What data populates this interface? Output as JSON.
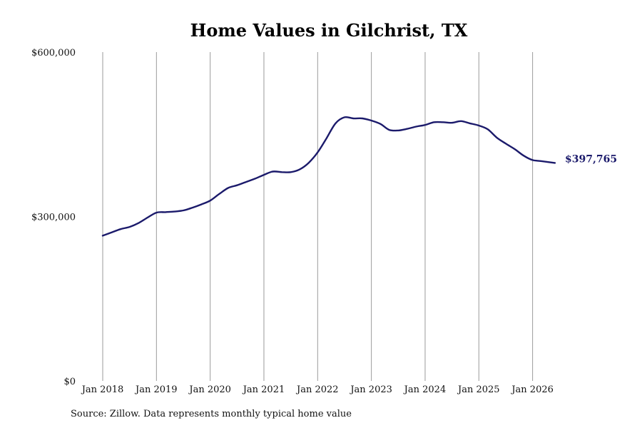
{
  "chart_data": {
    "type": "line",
    "title": "Home Values in Gilchrist, TX",
    "xlabel": "",
    "ylabel": "",
    "ylim": [
      0,
      600000
    ],
    "yticks": [
      {
        "value": 0,
        "label": "$0"
      },
      {
        "value": 300000,
        "label": "$300,000"
      },
      {
        "value": 600000,
        "label": "$600,000"
      }
    ],
    "xticks": [
      {
        "value": "2018-01",
        "label": "Jan 2018"
      },
      {
        "value": "2019-01",
        "label": "Jan 2019"
      },
      {
        "value": "2020-01",
        "label": "Jan 2020"
      },
      {
        "value": "2021-01",
        "label": "Jan 2021"
      },
      {
        "value": "2022-01",
        "label": "Jan 2022"
      },
      {
        "value": "2023-01",
        "label": "Jan 2023"
      },
      {
        "value": "2024-01",
        "label": "Jan 2024"
      },
      {
        "value": "2025-01",
        "label": "Jan 2025"
      },
      {
        "value": "2026-01",
        "label": "Jan 2026"
      }
    ],
    "xlim": [
      "2018-01",
      "2026-06"
    ],
    "grid": {
      "vertical": true,
      "horizontal": false
    },
    "line_color": "#1b1a6b",
    "grid_color": "#9a9a9a",
    "series": [
      {
        "x": [
          "2018-01",
          "2018-03",
          "2018-05",
          "2018-07",
          "2018-09",
          "2018-11",
          "2019-01",
          "2019-03",
          "2019-05",
          "2019-07",
          "2019-09",
          "2019-11",
          "2020-01",
          "2020-03",
          "2020-05",
          "2020-07",
          "2020-09",
          "2020-11",
          "2021-01",
          "2021-03",
          "2021-05",
          "2021-07",
          "2021-09",
          "2021-11",
          "2022-01",
          "2022-03",
          "2022-05",
          "2022-07",
          "2022-09",
          "2022-11",
          "2023-01",
          "2023-03",
          "2023-05",
          "2023-07",
          "2023-09",
          "2023-11",
          "2024-01",
          "2024-03",
          "2024-05",
          "2024-07",
          "2024-09",
          "2024-11",
          "2025-01",
          "2025-03",
          "2025-05",
          "2025-07",
          "2025-09",
          "2025-11",
          "2026-01",
          "2026-03",
          "2026-06"
        ],
        "values": [
          265000,
          271000,
          277000,
          281000,
          288000,
          298000,
          307000,
          308000,
          309000,
          311000,
          316000,
          322000,
          329000,
          341000,
          352000,
          357000,
          363000,
          369000,
          376000,
          382000,
          381000,
          381000,
          386000,
          398000,
          417000,
          443000,
          470000,
          481000,
          479000,
          479000,
          475000,
          469000,
          458000,
          457000,
          460000,
          464000,
          467000,
          472000,
          472000,
          471000,
          474000,
          470000,
          466000,
          459000,
          444000,
          433000,
          423000,
          411000,
          403000,
          401000,
          397765
        ]
      }
    ],
    "end_label": "$397,765"
  },
  "footer": {
    "source": "Source: Zillow. Data represents monthly typical home value"
  }
}
